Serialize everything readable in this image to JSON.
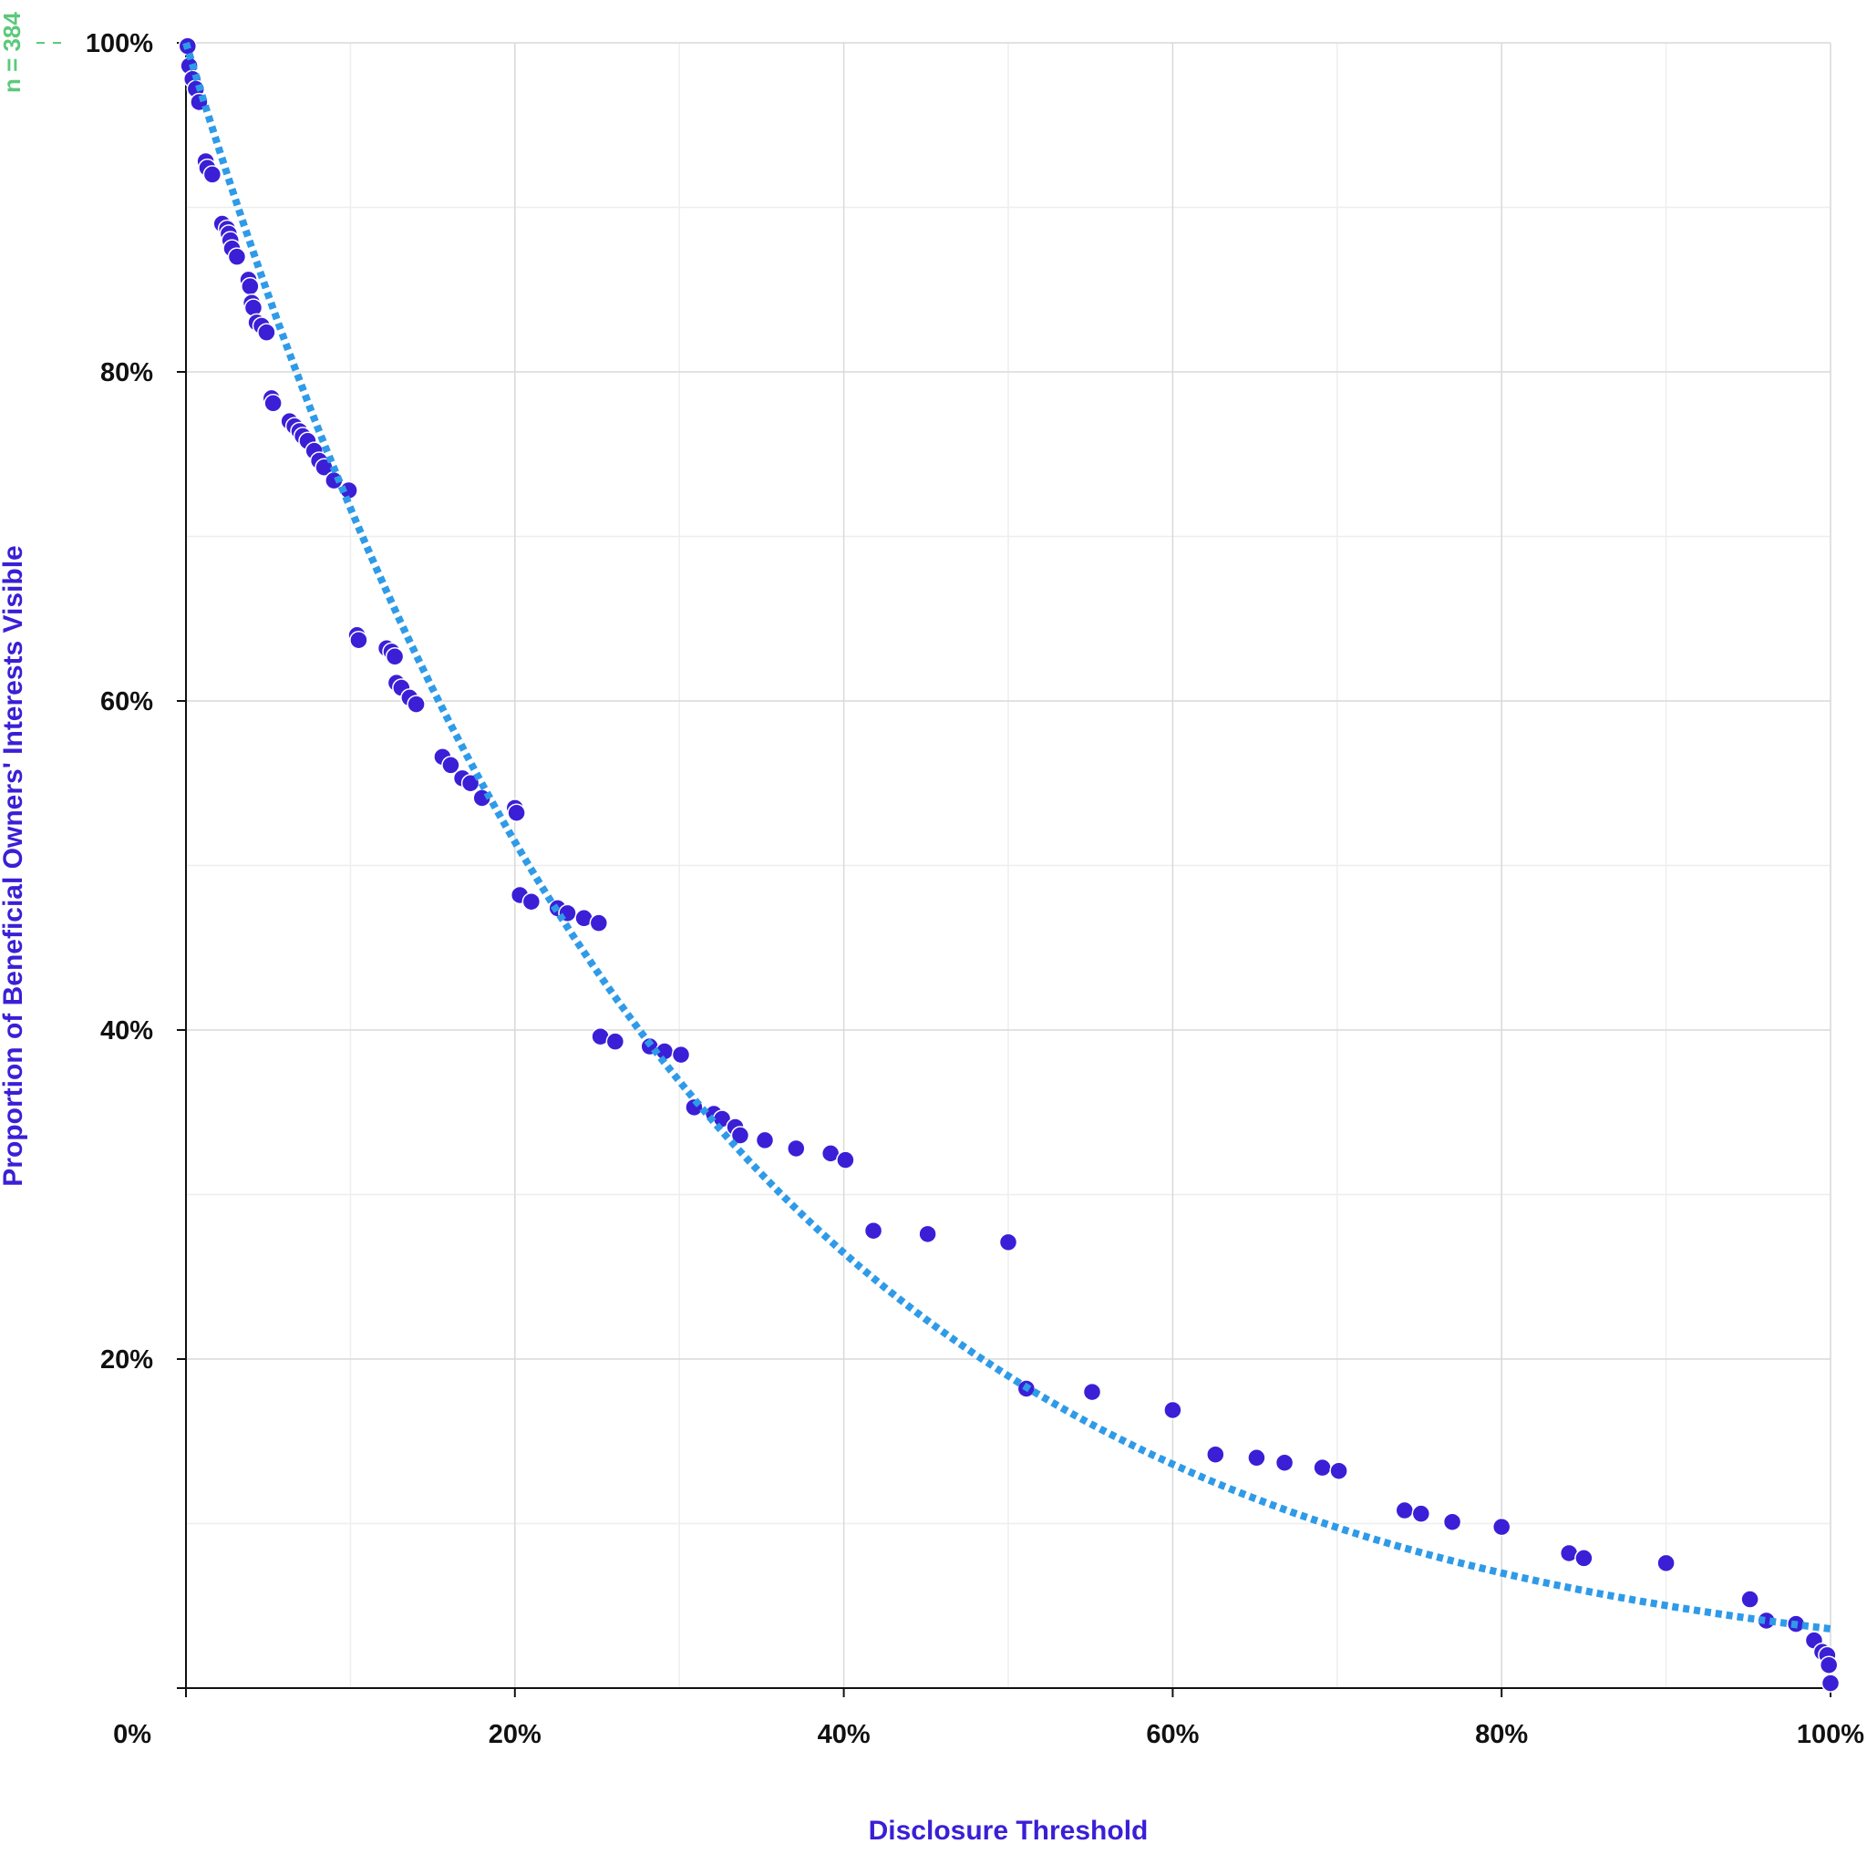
{
  "chart_data": {
    "type": "scatter",
    "xlabel": "Disclosure Threshold",
    "ylabel": "Proportion of Beneficial Owners' Interests Visible",
    "xlim": [
      0,
      100
    ],
    "ylim": [
      0,
      100
    ],
    "x_ticks": [
      "0%",
      "20%",
      "40%",
      "60%",
      "80%",
      "100%"
    ],
    "y_ticks": [
      "20%",
      "40%",
      "60%",
      "80%",
      "100%"
    ],
    "grid": true,
    "annotation": "n = 384",
    "colors": {
      "points": "#3a1fd6",
      "trend": "#2f9be8",
      "annotation": "#5cc97a",
      "axis_title": "#3a1fd6"
    },
    "trend": {
      "type": "exponential",
      "start": [
        0,
        100
      ],
      "end": [
        100,
        3.6
      ],
      "style": "dotted"
    },
    "points": [
      [
        0.1,
        99.8
      ],
      [
        0.2,
        98.6
      ],
      [
        0.4,
        97.8
      ],
      [
        0.6,
        97.2
      ],
      [
        0.8,
        96.4
      ],
      [
        1.2,
        92.8
      ],
      [
        1.3,
        92.4
      ],
      [
        1.6,
        92.0
      ],
      [
        2.2,
        89.0
      ],
      [
        2.5,
        88.7
      ],
      [
        2.6,
        88.4
      ],
      [
        2.7,
        88.0
      ],
      [
        2.8,
        87.5
      ],
      [
        3.1,
        87.0
      ],
      [
        3.8,
        85.6
      ],
      [
        3.9,
        85.2
      ],
      [
        4.0,
        84.2
      ],
      [
        4.1,
        83.9
      ],
      [
        4.3,
        83.0
      ],
      [
        4.6,
        82.8
      ],
      [
        4.9,
        82.4
      ],
      [
        5.2,
        78.4
      ],
      [
        5.3,
        78.1
      ],
      [
        6.3,
        77.0
      ],
      [
        6.6,
        76.7
      ],
      [
        6.9,
        76.4
      ],
      [
        7.1,
        76.1
      ],
      [
        7.4,
        75.8
      ],
      [
        7.8,
        75.2
      ],
      [
        8.1,
        74.6
      ],
      [
        8.4,
        74.2
      ],
      [
        9.0,
        73.4
      ],
      [
        9.9,
        72.8
      ],
      [
        10.4,
        64.0
      ],
      [
        10.5,
        63.7
      ],
      [
        12.2,
        63.2
      ],
      [
        12.5,
        63.0
      ],
      [
        12.7,
        62.7
      ],
      [
        12.8,
        61.1
      ],
      [
        13.1,
        60.8
      ],
      [
        13.6,
        60.2
      ],
      [
        14.0,
        59.8
      ],
      [
        15.6,
        56.6
      ],
      [
        16.1,
        56.1
      ],
      [
        16.8,
        55.3
      ],
      [
        17.3,
        55.0
      ],
      [
        18.0,
        54.1
      ],
      [
        20.0,
        53.5
      ],
      [
        20.1,
        53.2
      ],
      [
        20.3,
        48.2
      ],
      [
        21.0,
        47.8
      ],
      [
        22.6,
        47.4
      ],
      [
        23.2,
        47.1
      ],
      [
        24.2,
        46.8
      ],
      [
        25.1,
        46.5
      ],
      [
        25.2,
        39.6
      ],
      [
        26.1,
        39.3
      ],
      [
        28.2,
        39.0
      ],
      [
        29.1,
        38.7
      ],
      [
        30.1,
        38.5
      ],
      [
        30.9,
        35.3
      ],
      [
        32.1,
        34.9
      ],
      [
        32.6,
        34.6
      ],
      [
        33.4,
        34.1
      ],
      [
        33.7,
        33.6
      ],
      [
        35.2,
        33.3
      ],
      [
        37.1,
        32.8
      ],
      [
        39.2,
        32.5
      ],
      [
        40.1,
        32.1
      ],
      [
        41.8,
        27.8
      ],
      [
        45.1,
        27.6
      ],
      [
        50.0,
        27.1
      ],
      [
        51.1,
        18.2
      ],
      [
        55.1,
        18.0
      ],
      [
        60.0,
        16.9
      ],
      [
        62.6,
        14.2
      ],
      [
        65.1,
        14.0
      ],
      [
        66.8,
        13.7
      ],
      [
        69.1,
        13.4
      ],
      [
        70.1,
        13.2
      ],
      [
        74.1,
        10.8
      ],
      [
        75.1,
        10.6
      ],
      [
        77.0,
        10.1
      ],
      [
        80.0,
        9.8
      ],
      [
        84.1,
        8.2
      ],
      [
        85.0,
        7.9
      ],
      [
        90.0,
        7.6
      ],
      [
        95.1,
        5.4
      ],
      [
        96.1,
        4.1
      ],
      [
        97.9,
        3.9
      ],
      [
        99.0,
        2.9
      ],
      [
        99.5,
        2.2
      ],
      [
        99.8,
        2.0
      ],
      [
        99.9,
        1.4
      ],
      [
        100.0,
        0.3
      ]
    ]
  }
}
